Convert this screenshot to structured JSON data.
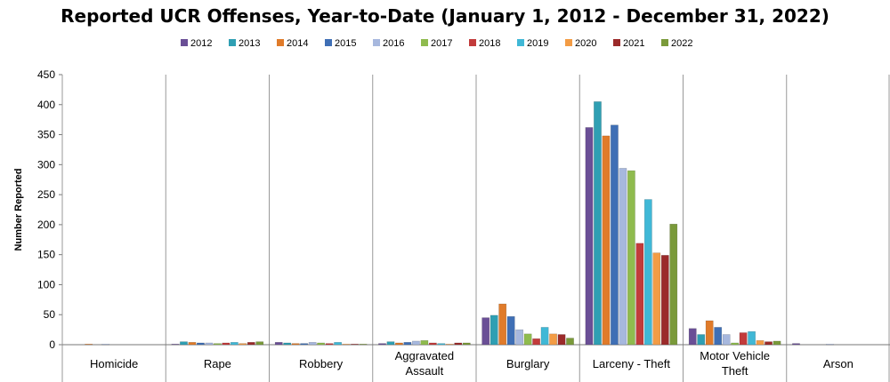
{
  "chart_data": {
    "type": "bar",
    "title": "Reported UCR Offenses, Year-to-Date (January 1, 2012 - December 31, 2022)",
    "xlabel": "",
    "ylabel": "Number Reported",
    "ylim": [
      0,
      450
    ],
    "yticks": [
      0,
      50,
      100,
      150,
      200,
      250,
      300,
      350,
      400,
      450
    ],
    "grid": "vertical category separators",
    "legend": "top",
    "categories": [
      [
        "Homicide"
      ],
      [
        "Rape"
      ],
      [
        "Robbery"
      ],
      [
        "Aggravated",
        "Assault"
      ],
      [
        "Burglary"
      ],
      [
        "Larceny - Theft"
      ],
      [
        "Motor Vehicle",
        "Theft"
      ],
      [
        "Arson"
      ]
    ],
    "series": [
      {
        "name": "2012",
        "color": "#6a4f96",
        "values": [
          0,
          1,
          4,
          2,
          45,
          362,
          27,
          2
        ]
      },
      {
        "name": "2013",
        "color": "#2f9fb3",
        "values": [
          0,
          5,
          3,
          5,
          49,
          405,
          17,
          0
        ]
      },
      {
        "name": "2014",
        "color": "#e07b2a",
        "values": [
          1,
          4,
          2,
          3,
          68,
          348,
          40,
          0
        ]
      },
      {
        "name": "2015",
        "color": "#3f6fb5",
        "values": [
          0,
          3,
          2,
          4,
          47,
          366,
          29,
          0
        ]
      },
      {
        "name": "2016",
        "color": "#a7b8de",
        "values": [
          1,
          3,
          4,
          6,
          25,
          294,
          17,
          1
        ]
      },
      {
        "name": "2017",
        "color": "#8fbb4e",
        "values": [
          0,
          2,
          3,
          7,
          18,
          290,
          3,
          0
        ]
      },
      {
        "name": "2018",
        "color": "#c23b3b",
        "values": [
          0,
          3,
          2,
          3,
          10,
          169,
          20,
          0
        ]
      },
      {
        "name": "2019",
        "color": "#40b8d6",
        "values": [
          0,
          4,
          4,
          2,
          29,
          242,
          22,
          0
        ]
      },
      {
        "name": "2020",
        "color": "#f39c45",
        "values": [
          0,
          2,
          1,
          1,
          18,
          153,
          7,
          0
        ]
      },
      {
        "name": "2021",
        "color": "#9b2a2a",
        "values": [
          0,
          4,
          1,
          3,
          17,
          149,
          5,
          0
        ]
      },
      {
        "name": "2022",
        "color": "#7a9a3a",
        "values": [
          0,
          5,
          1,
          3,
          11,
          201,
          6,
          0
        ]
      }
    ]
  }
}
